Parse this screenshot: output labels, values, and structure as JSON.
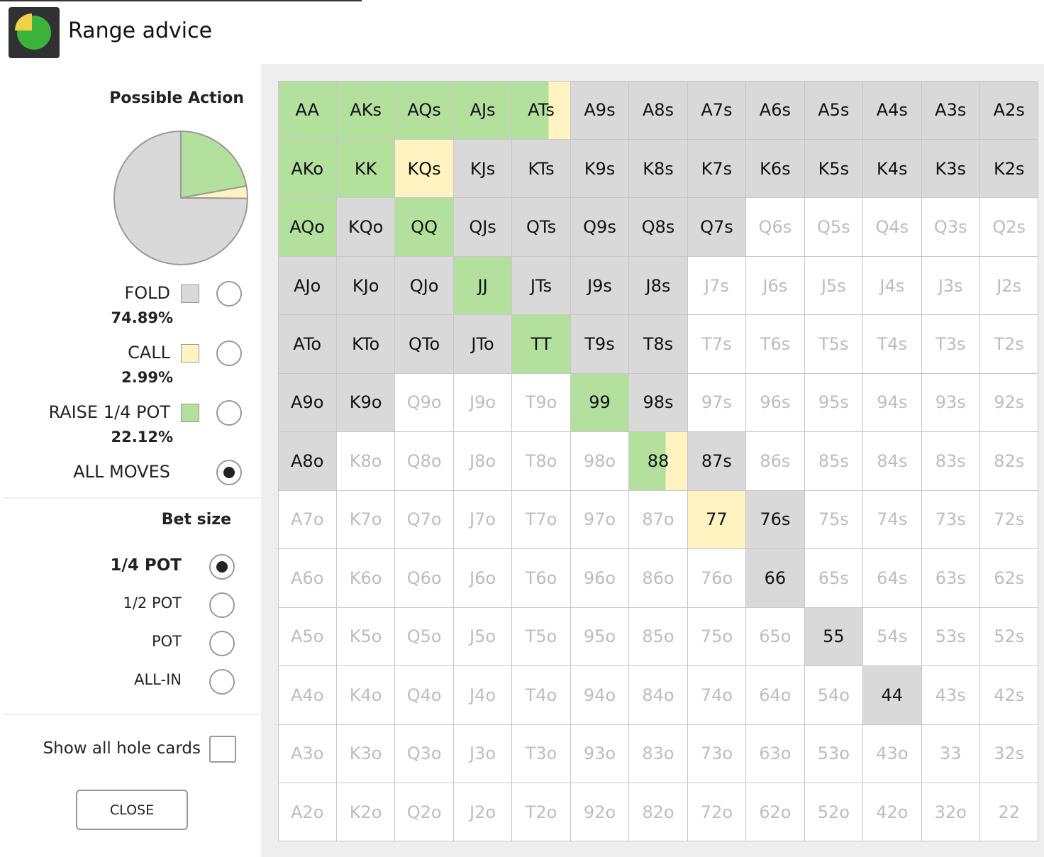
{
  "header": {
    "title": "Range advice"
  },
  "action_panel": {
    "title": "Possible Action",
    "actions": [
      {
        "name": "FOLD",
        "value": 74.89,
        "label": "74.89%",
        "color": "#d9d9d9",
        "selected": false
      },
      {
        "name": "CALL",
        "value": 2.99,
        "label": "2.99%",
        "color": "#fff3c2",
        "selected": false
      },
      {
        "name": "RAISE 1/4 POT",
        "value": 22.12,
        "label": "22.12%",
        "color": "#b3e09c",
        "selected": false
      }
    ],
    "all_moves": {
      "label": "ALL MOVES",
      "selected": true
    }
  },
  "bet_panel": {
    "title": "Bet size",
    "sizes": [
      {
        "label": "1/4 POT",
        "selected": true
      },
      {
        "label": "1/2 POT",
        "selected": false
      },
      {
        "label": "POT",
        "selected": false
      },
      {
        "label": "ALL-IN",
        "selected": false
      }
    ]
  },
  "show_all": {
    "label": "Show all hole cards",
    "checked": false
  },
  "close": "CLOSE",
  "range_grid": {
    "state_colors": {
      "r": "#b3e09c",
      "c": "#fff3c2",
      "f": "#d9d9d9",
      "x": "#ffffff"
    },
    "hands": [
      [
        "AA",
        "AKs",
        "AQs",
        "AJs",
        "ATs",
        "A9s",
        "A8s",
        "A7s",
        "A6s",
        "A5s",
        "A4s",
        "A3s",
        "A2s"
      ],
      [
        "AKo",
        "KK",
        "KQs",
        "KJs",
        "KTs",
        "K9s",
        "K8s",
        "K7s",
        "K6s",
        "K5s",
        "K4s",
        "K3s",
        "K2s"
      ],
      [
        "AQo",
        "KQo",
        "QQ",
        "QJs",
        "QTs",
        "Q9s",
        "Q8s",
        "Q7s",
        "Q6s",
        "Q5s",
        "Q4s",
        "Q3s",
        "Q2s"
      ],
      [
        "AJo",
        "KJo",
        "QJo",
        "JJ",
        "JTs",
        "J9s",
        "J8s",
        "J7s",
        "J6s",
        "J5s",
        "J4s",
        "J3s",
        "J2s"
      ],
      [
        "ATo",
        "KTo",
        "QTo",
        "JTo",
        "TT",
        "T9s",
        "T8s",
        "T7s",
        "T6s",
        "T5s",
        "T4s",
        "T3s",
        "T2s"
      ],
      [
        "A9o",
        "K9o",
        "Q9o",
        "J9o",
        "T9o",
        "99",
        "98s",
        "97s",
        "96s",
        "95s",
        "94s",
        "93s",
        "92s"
      ],
      [
        "A8o",
        "K8o",
        "Q8o",
        "J8o",
        "T8o",
        "98o",
        "88",
        "87s",
        "86s",
        "85s",
        "84s",
        "83s",
        "82s"
      ],
      [
        "A7o",
        "K7o",
        "Q7o",
        "J7o",
        "T7o",
        "97o",
        "87o",
        "77",
        "76s",
        "75s",
        "74s",
        "73s",
        "72s"
      ],
      [
        "A6o",
        "K6o",
        "Q6o",
        "J6o",
        "T6o",
        "96o",
        "86o",
        "76o",
        "66",
        "65s",
        "64s",
        "63s",
        "62s"
      ],
      [
        "A5o",
        "K5o",
        "Q5o",
        "J5o",
        "T5o",
        "95o",
        "85o",
        "75o",
        "65o",
        "55",
        "54s",
        "53s",
        "52s"
      ],
      [
        "A4o",
        "K4o",
        "Q4o",
        "J4o",
        "T4o",
        "94o",
        "84o",
        "74o",
        "64o",
        "54o",
        "44",
        "43s",
        "42s"
      ],
      [
        "A3o",
        "K3o",
        "Q3o",
        "J3o",
        "T3o",
        "93o",
        "83o",
        "73o",
        "63o",
        "53o",
        "43o",
        "33",
        "32s"
      ],
      [
        "A2o",
        "K2o",
        "Q2o",
        "J2o",
        "T2o",
        "92o",
        "82o",
        "72o",
        "62o",
        "52o",
        "42o",
        "32o",
        "22"
      ]
    ],
    "states": [
      "rrrrmffffffff",
      "rrcffffffffff",
      "rfrfffffxxxxx",
      "fffrfffxxxxxx",
      "ffffrffxxxxxx",
      "ffxxxrfxxxxxx",
      "fxxxxxmfxxxxx",
      "xxxxxxxcfxxxx",
      "xxxxxxxxfxxxx",
      "xxxxxxxxxfxxx",
      "xxxxxxxxxxfxx",
      "xxxxxxxxxxxxx",
      "xxxxxxxxxxxxx"
    ]
  }
}
